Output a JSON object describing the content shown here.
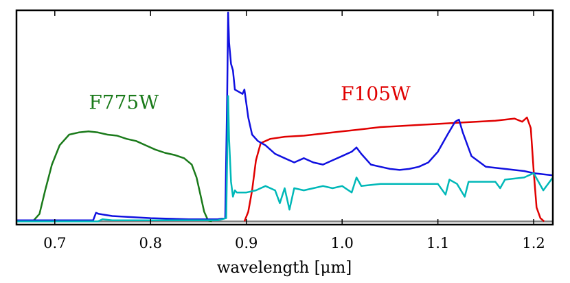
{
  "chart_data": {
    "type": "line",
    "title": "",
    "xlabel": "wavelength [μm]",
    "ylabel": "",
    "xlim": [
      0.66,
      1.22
    ],
    "ylim": [
      0,
      1
    ],
    "grid": false,
    "legend": "none",
    "xticks": [
      {
        "value": 0.7,
        "label": "0.7"
      },
      {
        "value": 0.8,
        "label": "0.8"
      },
      {
        "value": 0.9,
        "label": "0.9"
      },
      {
        "value": 1.0,
        "label": "1.0"
      },
      {
        "value": 1.1,
        "label": "1.1"
      },
      {
        "value": 1.2,
        "label": "1.2"
      }
    ],
    "annotations": [
      {
        "id": "f775w",
        "text": "F775W",
        "x": 0.772,
        "y": 0.54,
        "color": "#1a7a1a"
      },
      {
        "id": "f105w",
        "text": "F105W",
        "x": 1.035,
        "y": 0.58,
        "color": "#e00000"
      }
    ],
    "baseline": {
      "y": 0.015,
      "color": "#808080"
    },
    "series": [
      {
        "id": "f775w",
        "color": "#1a7a1a",
        "x": [
          0.677,
          0.684,
          0.69,
          0.697,
          0.705,
          0.715,
          0.725,
          0.735,
          0.745,
          0.755,
          0.765,
          0.775,
          0.785,
          0.795,
          0.805,
          0.815,
          0.825,
          0.835,
          0.843,
          0.848,
          0.852,
          0.856,
          0.86,
          0.864
        ],
        "y": [
          0.015,
          0.05,
          0.16,
          0.28,
          0.37,
          0.42,
          0.43,
          0.435,
          0.43,
          0.42,
          0.415,
          0.4,
          0.39,
          0.37,
          0.35,
          0.335,
          0.325,
          0.31,
          0.28,
          0.22,
          0.14,
          0.06,
          0.02,
          0.015
        ]
      },
      {
        "id": "f105w",
        "color": "#e00000",
        "x": [
          0.898,
          0.902,
          0.906,
          0.91,
          0.915,
          0.925,
          0.94,
          0.96,
          0.98,
          1.0,
          1.02,
          1.04,
          1.06,
          1.08,
          1.1,
          1.12,
          1.14,
          1.16,
          1.18,
          1.188,
          1.193,
          1.197,
          1.2,
          1.203,
          1.207,
          1.211
        ],
        "y": [
          0.015,
          0.06,
          0.16,
          0.3,
          0.38,
          0.4,
          0.41,
          0.415,
          0.425,
          0.435,
          0.445,
          0.455,
          0.46,
          0.465,
          0.47,
          0.475,
          0.48,
          0.485,
          0.495,
          0.48,
          0.5,
          0.45,
          0.25,
          0.08,
          0.03,
          0.015
        ]
      },
      {
        "id": "blue",
        "color": "#1010e0",
        "x": [
          0.66,
          0.74,
          0.743,
          0.746,
          0.76,
          0.8,
          0.84,
          0.87,
          0.878,
          0.88,
          0.881,
          0.882,
          0.884,
          0.886,
          0.888,
          0.892,
          0.896,
          0.898,
          0.902,
          0.906,
          0.912,
          0.92,
          0.93,
          0.94,
          0.95,
          0.96,
          0.97,
          0.98,
          0.99,
          1.0,
          1.01,
          1.015,
          1.02,
          1.03,
          1.04,
          1.05,
          1.06,
          1.07,
          1.08,
          1.09,
          1.1,
          1.11,
          1.118,
          1.122,
          1.126,
          1.135,
          1.15,
          1.17,
          1.19,
          1.2,
          1.21,
          1.22
        ],
        "y": [
          0.02,
          0.02,
          0.055,
          0.05,
          0.04,
          0.03,
          0.025,
          0.025,
          0.03,
          0.6,
          0.99,
          0.85,
          0.75,
          0.72,
          0.63,
          0.62,
          0.61,
          0.63,
          0.5,
          0.42,
          0.39,
          0.37,
          0.33,
          0.31,
          0.29,
          0.31,
          0.29,
          0.28,
          0.3,
          0.32,
          0.34,
          0.36,
          0.33,
          0.28,
          0.27,
          0.26,
          0.255,
          0.26,
          0.27,
          0.29,
          0.34,
          0.42,
          0.48,
          0.49,
          0.43,
          0.32,
          0.27,
          0.26,
          0.25,
          0.24,
          0.235,
          0.23
        ]
      },
      {
        "id": "cyan",
        "color": "#00b8b8",
        "x": [
          0.66,
          0.745,
          0.75,
          0.76,
          0.87,
          0.879,
          0.881,
          0.882,
          0.884,
          0.886,
          0.888,
          0.89,
          0.9,
          0.91,
          0.92,
          0.93,
          0.935,
          0.94,
          0.945,
          0.95,
          0.96,
          0.97,
          0.98,
          0.99,
          1.0,
          1.01,
          1.015,
          1.02,
          1.04,
          1.06,
          1.08,
          1.1,
          1.108,
          1.112,
          1.12,
          1.128,
          1.132,
          1.14,
          1.16,
          1.165,
          1.17,
          1.19,
          1.2,
          1.21,
          1.22
        ],
        "y": [
          0.015,
          0.015,
          0.025,
          0.02,
          0.02,
          0.03,
          0.6,
          0.4,
          0.2,
          0.13,
          0.16,
          0.15,
          0.15,
          0.16,
          0.18,
          0.16,
          0.1,
          0.17,
          0.07,
          0.17,
          0.16,
          0.17,
          0.18,
          0.17,
          0.18,
          0.15,
          0.22,
          0.18,
          0.19,
          0.19,
          0.19,
          0.19,
          0.14,
          0.21,
          0.19,
          0.13,
          0.2,
          0.2,
          0.2,
          0.17,
          0.21,
          0.22,
          0.24,
          0.16,
          0.22
        ]
      }
    ]
  }
}
